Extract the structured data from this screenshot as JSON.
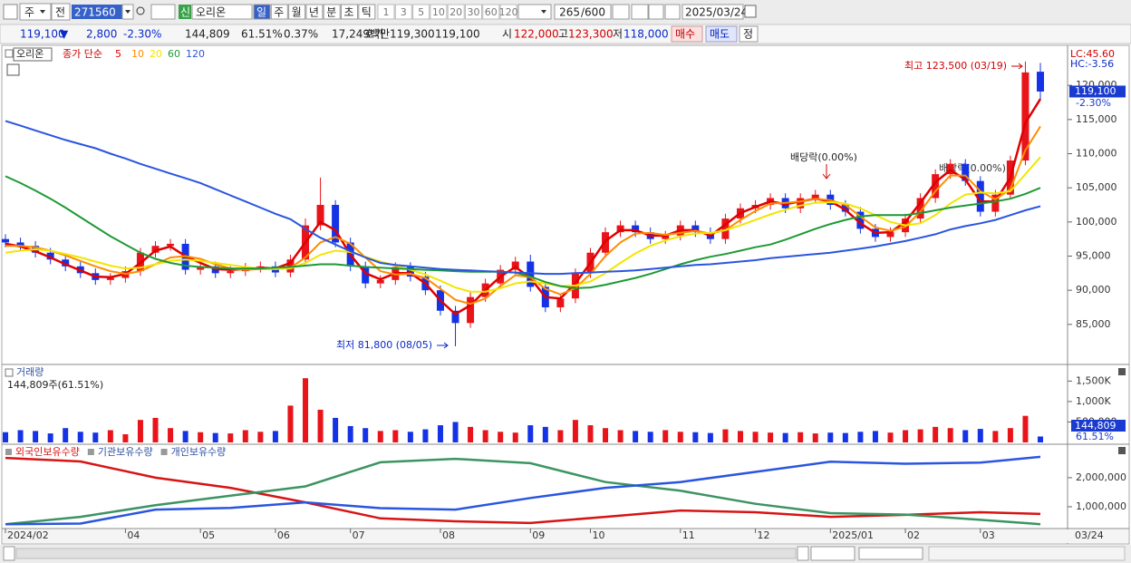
{
  "toolbar": {
    "market": "주",
    "prefix": "전",
    "code": "271560",
    "new_badge": "신",
    "name": "오리온",
    "periods": [
      "일",
      "주",
      "월",
      "년",
      "분",
      "초",
      "틱"
    ],
    "intervals": [
      "1",
      "3",
      "5",
      "10",
      "20",
      "30",
      "60",
      "120"
    ],
    "count": "265",
    "max_count": "/600",
    "date": "2025/03/24"
  },
  "quote_bar": {
    "price": "119,100",
    "direction": "▼",
    "change": "2,800",
    "change_pct": "-2.30%",
    "volume": "144,809",
    "volume_ratio": "61.51%",
    "turnover": "0.37%",
    "amount": "17,249백만",
    "bid_label": "호가",
    "ask": "119,300",
    "bid": "119,100",
    "open_label": "시",
    "open": "122,000",
    "high_label": "고",
    "high": "123,300",
    "low_label": "저",
    "low": "118,000",
    "buy": "매수",
    "sell": "매도",
    "correct": "정"
  },
  "chart_data": [
    {
      "type": "candlestick",
      "title": "오리온",
      "ma_label": "종가 단순",
      "categories": [
        "2024/02",
        null,
        null,
        null,
        null,
        null,
        null,
        null,
        "04",
        null,
        null,
        null,
        null,
        "05",
        null,
        null,
        null,
        null,
        "06",
        null,
        null,
        null,
        null,
        "07",
        null,
        null,
        null,
        null,
        null,
        "08",
        null,
        null,
        null,
        null,
        null,
        "09",
        null,
        null,
        null,
        "10",
        null,
        null,
        null,
        null,
        null,
        "11",
        null,
        null,
        null,
        null,
        "12",
        null,
        null,
        null,
        null,
        "2025/01",
        null,
        null,
        null,
        null,
        "02",
        null,
        null,
        null,
        null,
        "03",
        null,
        null,
        null,
        null
      ],
      "open": [
        97500,
        97000,
        96500,
        95500,
        94500,
        93500,
        92500,
        91500,
        91800,
        92800,
        95500,
        96500,
        96800,
        93000,
        93500,
        92500,
        92800,
        93300,
        93500,
        92600,
        94500,
        99500,
        102500,
        97000,
        93500,
        91000,
        91500,
        93400,
        92000,
        90000,
        87000,
        85200,
        89000,
        91000,
        93000,
        94200,
        90500,
        87500,
        88800,
        92500,
        95500,
        98500,
        99500,
        98500,
        97500,
        98000,
        99500,
        98500,
        97500,
        100500,
        102000,
        102500,
        103500,
        102000,
        103500,
        104000,
        102500,
        101500,
        99000,
        97800,
        98500,
        100500,
        103500,
        107000,
        108500,
        106000,
        101500,
        104000,
        109000,
        122000
      ],
      "high": [
        98200,
        97700,
        97200,
        96200,
        95200,
        94200,
        93200,
        92500,
        93500,
        96200,
        97200,
        97500,
        97500,
        94200,
        94200,
        93500,
        94000,
        94200,
        94200,
        95200,
        100500,
        106500,
        103200,
        97700,
        94200,
        92200,
        94100,
        94100,
        92700,
        90700,
        87700,
        89700,
        91700,
        93700,
        94900,
        95200,
        91200,
        89500,
        93200,
        96200,
        99200,
        100200,
        100200,
        99200,
        98700,
        100200,
        100200,
        99200,
        101200,
        102700,
        103200,
        104200,
        104200,
        104200,
        104700,
        104700,
        103200,
        102200,
        99700,
        99200,
        101200,
        104200,
        107700,
        109200,
        109200,
        106700,
        104700,
        109700,
        123500,
        123300
      ],
      "low": [
        96300,
        95800,
        94800,
        93800,
        92800,
        91800,
        90800,
        90800,
        91100,
        92100,
        94800,
        95800,
        92300,
        92300,
        91800,
        91800,
        92100,
        92600,
        91900,
        91900,
        93800,
        98800,
        96300,
        92800,
        90300,
        90300,
        90800,
        91300,
        89300,
        86300,
        81800,
        84500,
        88300,
        90300,
        92300,
        89800,
        86800,
        86800,
        88100,
        91800,
        94800,
        97800,
        97800,
        96800,
        96800,
        97300,
        97800,
        96800,
        96800,
        99800,
        101300,
        101800,
        101300,
        101300,
        102800,
        101800,
        100800,
        98300,
        97100,
        97100,
        97800,
        99800,
        102800,
        106300,
        105300,
        100800,
        100800,
        103300,
        108300,
        118000
      ],
      "close": [
        97000,
        96500,
        95500,
        94500,
        93500,
        92500,
        91500,
        91800,
        92800,
        95500,
        96500,
        96800,
        93000,
        93500,
        92500,
        92800,
        93300,
        93500,
        92600,
        94500,
        99500,
        102500,
        97000,
        93500,
        91000,
        91500,
        93400,
        92000,
        90000,
        87000,
        85200,
        89000,
        91000,
        93000,
        94200,
        90500,
        87500,
        88800,
        92500,
        95500,
        98500,
        99500,
        98500,
        97500,
        98000,
        99500,
        98500,
        97500,
        100500,
        102000,
        102500,
        103500,
        102000,
        103500,
        104000,
        102500,
        101500,
        99000,
        97800,
        98500,
        100500,
        103500,
        107000,
        108500,
        106000,
        101500,
        104000,
        109000,
        121900,
        119100
      ],
      "up_color": "#e8141a",
      "down_color": "#1432e6",
      "series": [
        {
          "name": "5",
          "color": "#e00000",
          "values": [
            96800,
            96400,
            95700,
            94800,
            93800,
            92900,
            92000,
            91900,
            92400,
            94000,
            95800,
            96400,
            95000,
            94000,
            93100,
            93000,
            93100,
            93300,
            93200,
            94000,
            97000,
            100000,
            98800,
            95200,
            92500,
            91600,
            92500,
            92500,
            91000,
            88500,
            86500,
            87800,
            90000,
            92000,
            93400,
            91800,
            89000,
            88800,
            91000,
            94000,
            97200,
            98800,
            98800,
            98000,
            98000,
            98800,
            98800,
            98000,
            99600,
            101300,
            102200,
            103000,
            102600,
            103000,
            103400,
            103000,
            101800,
            99800,
            98400,
            98500,
            100000,
            102800,
            105800,
            107600,
            106200,
            103000,
            103000,
            106500,
            114500,
            118000
          ]
        },
        {
          "name": "10",
          "color": "#ff8c00",
          "values": [
            96500,
            96500,
            96300,
            95800,
            95100,
            94300,
            93500,
            92800,
            92400,
            92800,
            93800,
            94800,
            95000,
            94600,
            93800,
            93200,
            93000,
            93100,
            93100,
            93300,
            94800,
            97000,
            97800,
            96800,
            94800,
            92800,
            92300,
            92400,
            91800,
            90200,
            88600,
            88000,
            88800,
            90600,
            92200,
            91900,
            90200,
            89400,
            90300,
            92400,
            95000,
            97000,
            98300,
            98400,
            98100,
            98400,
            98700,
            98300,
            98800,
            100300,
            101600,
            102700,
            102800,
            103000,
            103400,
            103200,
            102500,
            100800,
            99200,
            98700,
            99300,
            101500,
            104500,
            106800,
            106800,
            104500,
            103300,
            104800,
            110500,
            114000
          ]
        },
        {
          "name": "20",
          "color": "#f2e600",
          "values": [
            95500,
            95800,
            96000,
            95800,
            95300,
            94800,
            94200,
            93600,
            93200,
            93300,
            93800,
            94300,
            94500,
            94300,
            94000,
            93700,
            93400,
            93200,
            93100,
            93200,
            94000,
            95200,
            95800,
            95600,
            94900,
            94200,
            93600,
            93000,
            92300,
            91400,
            90400,
            89800,
            89800,
            90300,
            91000,
            91300,
            91000,
            90600,
            90700,
            91300,
            92500,
            94000,
            95400,
            96500,
            97300,
            97900,
            98300,
            98400,
            98800,
            99500,
            100300,
            101100,
            101800,
            102400,
            102800,
            102900,
            102700,
            102000,
            101000,
            100000,
            99500,
            99800,
            101000,
            102700,
            104000,
            104300,
            104200,
            104500,
            107000,
            109500
          ]
        },
        {
          "name": "60",
          "color": "#1e9a34",
          "values": [
            106700,
            105700,
            104600,
            103400,
            102100,
            100700,
            99300,
            97900,
            96700,
            95500,
            94600,
            94000,
            93600,
            93400,
            93300,
            93200,
            93200,
            93200,
            93300,
            93400,
            93600,
            93800,
            93800,
            93600,
            93400,
            93300,
            93200,
            93100,
            93000,
            92900,
            92800,
            92700,
            92700,
            92700,
            92600,
            92000,
            91200,
            90600,
            90300,
            90400,
            90800,
            91300,
            91800,
            92400,
            93100,
            93800,
            94400,
            94900,
            95300,
            95800,
            96300,
            96700,
            97400,
            98200,
            99000,
            99700,
            100300,
            100800,
            101000,
            101000,
            101000,
            101300,
            101700,
            102100,
            102400,
            102700,
            103000,
            103400,
            104100,
            105000
          ]
        },
        {
          "name": "120",
          "color": "#2a55e0",
          "values": [
            114800,
            114100,
            113400,
            112700,
            112000,
            111400,
            110800,
            110000,
            109300,
            108500,
            107800,
            107100,
            106400,
            105700,
            104800,
            103900,
            103000,
            102100,
            101200,
            100400,
            99000,
            97700,
            96700,
            95700,
            94800,
            94000,
            93700,
            93500,
            93300,
            93100,
            93000,
            92900,
            92800,
            92700,
            92600,
            92500,
            92400,
            92400,
            92500,
            92600,
            92700,
            92800,
            92900,
            93100,
            93300,
            93500,
            93700,
            93800,
            94000,
            94200,
            94400,
            94700,
            94900,
            95100,
            95300,
            95500,
            95800,
            96100,
            96400,
            96800,
            97200,
            97700,
            98200,
            98900,
            99400,
            99800,
            100300,
            101000,
            101700,
            102300
          ]
        }
      ],
      "ylim": [
        79400,
        125600
      ],
      "yticks": [
        {
          "value": 85000,
          "label": "85,000"
        },
        {
          "value": 90000,
          "label": "90,000"
        },
        {
          "value": 95000,
          "label": "95,000"
        },
        {
          "value": 100000,
          "label": "100,000"
        },
        {
          "value": 105000,
          "label": "105,000"
        },
        {
          "value": 110000,
          "label": "110,000"
        },
        {
          "value": 115000,
          "label": "115,000"
        },
        {
          "value": 120000,
          "label": "120,000"
        }
      ],
      "grid": false,
      "last_price": {
        "value": 119100,
        "label": "119,100"
      },
      "last_change": "-2.30%",
      "lc": "LC:45.60",
      "hc": "HC:-3.56",
      "annotations": [
        "최고 123,500 (03/19)",
        "최저 81,800 (08/05)",
        "배당락(0.00%)",
        "배당락(0.00%)"
      ],
      "cursor_date": "03/24"
    },
    {
      "type": "bar",
      "title": "거래량",
      "subtitle": "144,809주(61.51%)",
      "values": [
        250000,
        300000,
        280000,
        220000,
        350000,
        260000,
        240000,
        300000,
        200000,
        550000,
        600000,
        350000,
        280000,
        250000,
        230000,
        220000,
        300000,
        260000,
        280000,
        900000,
        1570000,
        800000,
        600000,
        400000,
        350000,
        280000,
        300000,
        260000,
        320000,
        420000,
        500000,
        380000,
        300000,
        260000,
        240000,
        420000,
        380000,
        300000,
        550000,
        420000,
        350000,
        300000,
        280000,
        260000,
        300000,
        260000,
        250000,
        230000,
        320000,
        280000,
        260000,
        240000,
        230000,
        250000,
        220000,
        240000,
        230000,
        260000,
        280000,
        240000,
        300000,
        320000,
        380000,
        350000,
        300000,
        330000,
        280000,
        350000,
        650000,
        144809
      ],
      "ylim": [
        0,
        1840000
      ],
      "yticks": [
        {
          "value": 500000,
          "label": "500,000"
        },
        {
          "value": 1000000,
          "label": "1,000K"
        },
        {
          "value": 1500000,
          "label": "1,500K"
        }
      ],
      "grid": false,
      "last_value": {
        "value": 144809,
        "label": "144,809"
      },
      "last_ratio": "61.51%"
    },
    {
      "type": "line",
      "x": [
        0,
        5,
        10,
        15,
        20,
        25,
        30,
        35,
        40,
        45,
        50,
        55,
        60,
        65,
        69
      ],
      "series": [
        {
          "name": "외국인보유수량",
          "color": "#d81414",
          "values": [
            2680000,
            2560000,
            2000000,
            1650000,
            1150000,
            600000,
            500000,
            440000,
            650000,
            870000,
            810000,
            650000,
            720000,
            810000,
            750000
          ]
        },
        {
          "name": "기관보유수량",
          "color": "#3c9462",
          "values": [
            400000,
            650000,
            1050000,
            1380000,
            1700000,
            2530000,
            2650000,
            2500000,
            1850000,
            1550000,
            1100000,
            780000,
            730000,
            550000,
            400000
          ]
        },
        {
          "name": "개인보유수량",
          "color": "#2a55e0",
          "values": [
            400000,
            420000,
            900000,
            960000,
            1150000,
            950000,
            900000,
            1300000,
            1650000,
            1850000,
            2200000,
            2550000,
            2480000,
            2520000,
            2720000
          ]
        }
      ],
      "ylim": [
        280000,
        3090000
      ],
      "yticks": [
        {
          "value": 1000000,
          "label": "1,000,000"
        },
        {
          "value": 2000000,
          "label": "2,000,000"
        }
      ],
      "grid": false
    }
  ]
}
